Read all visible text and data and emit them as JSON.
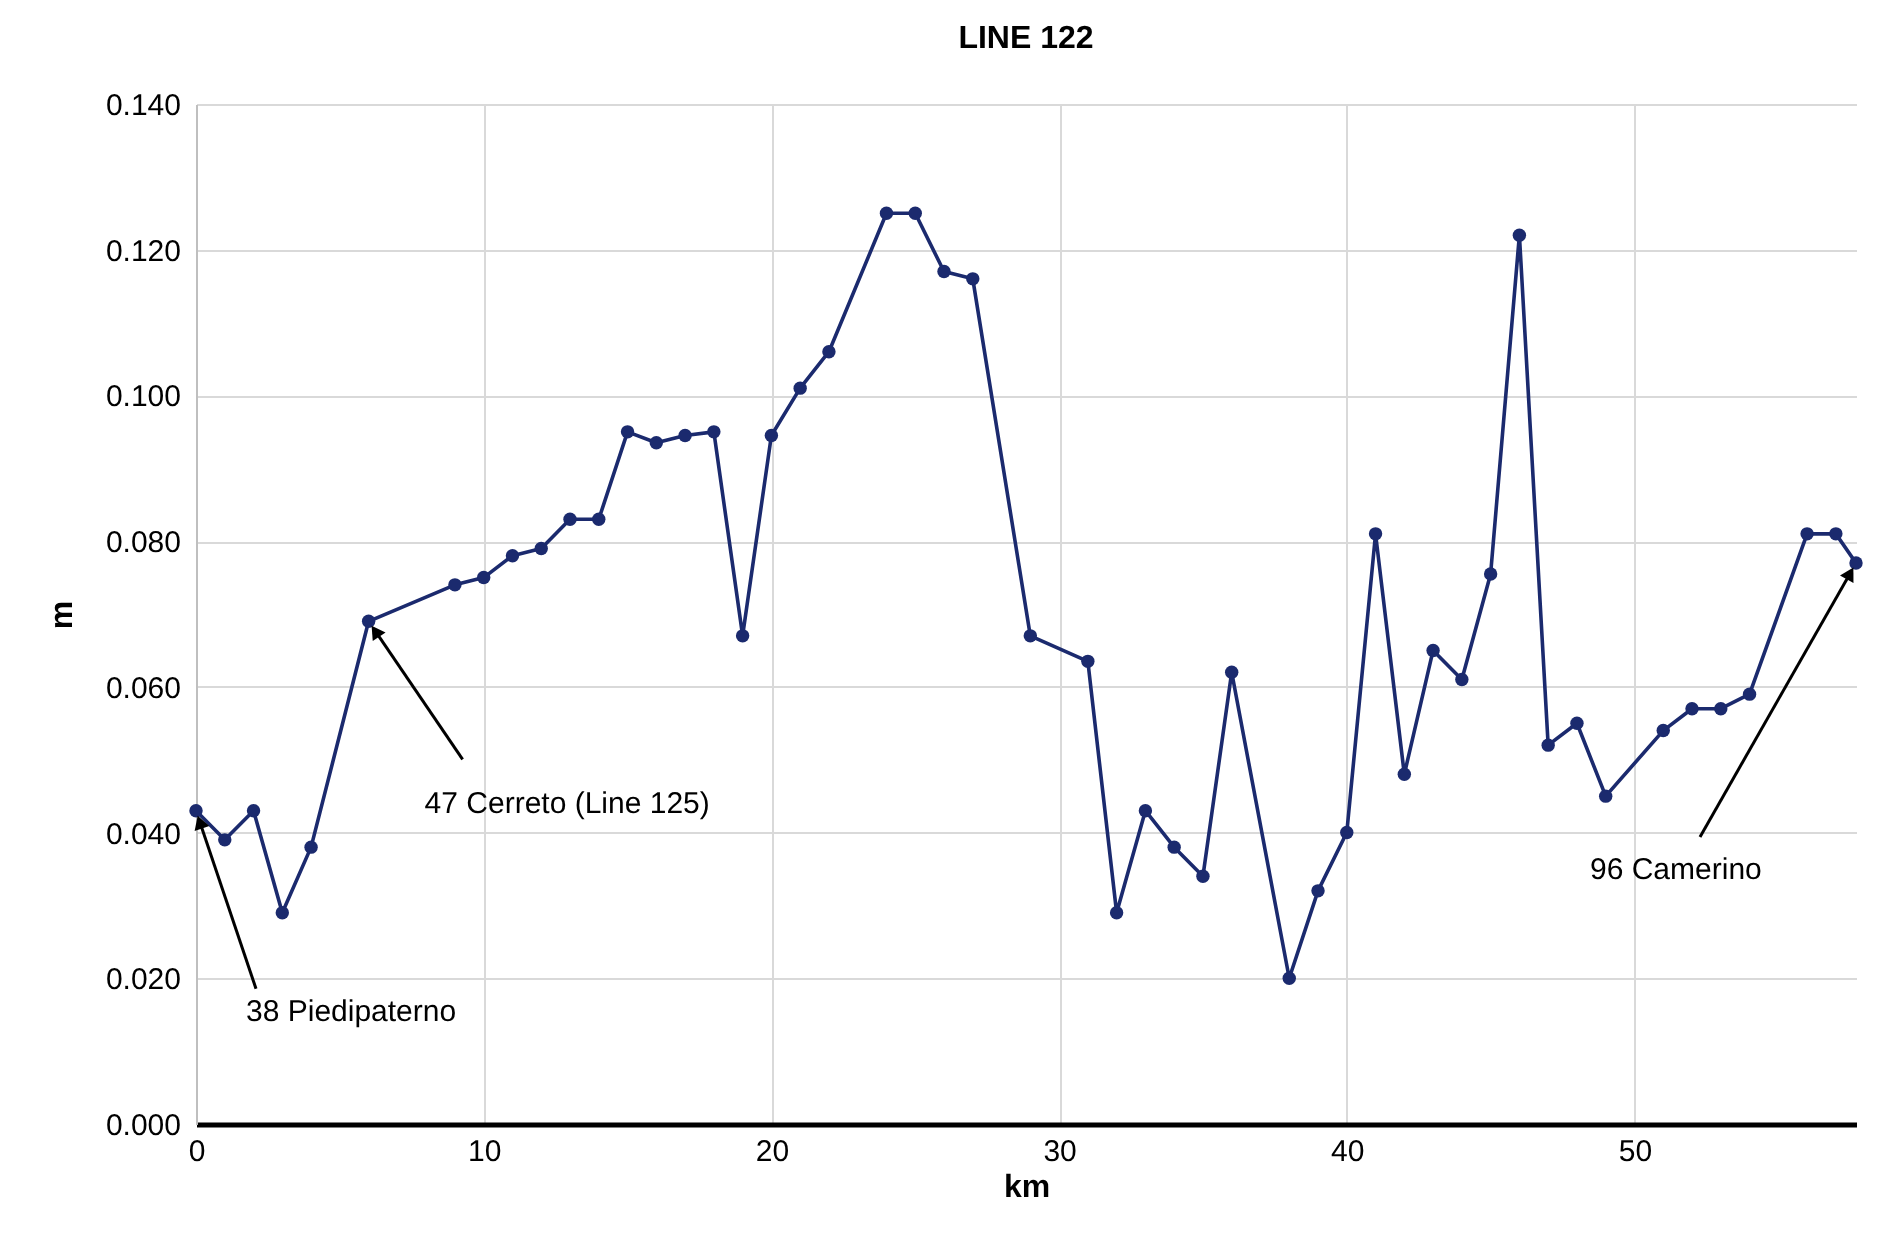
{
  "chart_data": {
    "type": "line",
    "title": "LINE 122",
    "xlabel": "km",
    "ylabel": "m",
    "x": [
      0,
      1,
      2,
      3,
      4,
      6,
      9,
      10,
      11,
      12,
      13,
      14,
      15,
      16,
      17,
      18,
      19,
      20,
      21,
      22,
      24,
      25,
      26,
      27,
      29,
      31,
      32,
      33,
      34,
      35,
      36,
      38,
      39,
      40,
      41,
      42,
      43,
      44,
      45,
      46,
      47,
      48,
      49,
      51,
      52,
      53,
      54,
      56,
      57,
      57.7
    ],
    "series": [
      {
        "color": "#1b2a6e",
        "values": [
          0.043,
          0.039,
          0.043,
          0.029,
          0.038,
          0.069,
          0.074,
          0.075,
          0.078,
          0.079,
          0.083,
          0.083,
          0.095,
          0.0935,
          0.0945,
          0.095,
          0.067,
          0.0945,
          0.101,
          0.106,
          0.125,
          0.125,
          0.117,
          0.116,
          0.067,
          0.0635,
          0.029,
          0.043,
          0.038,
          0.034,
          0.062,
          0.02,
          0.032,
          0.04,
          0.081,
          0.048,
          0.065,
          0.061,
          0.0755,
          0.122,
          0.052,
          0.055,
          0.045,
          0.054,
          0.057,
          0.057,
          0.059,
          0.081,
          0.081,
          0.077
        ]
      }
    ],
    "xlim": [
      0,
      57.7
    ],
    "xticks": [
      0,
      10,
      20,
      30,
      40,
      50
    ],
    "ylim": [
      0,
      0.14
    ],
    "yticks": [
      {
        "value": 0,
        "label": "0.000"
      },
      {
        "value": 0.02,
        "label": "0.020"
      },
      {
        "value": 0.04,
        "label": "0.040"
      },
      {
        "value": 0.06,
        "label": "0.060"
      },
      {
        "value": 0.08,
        "label": "0.080"
      },
      {
        "value": 0.1,
        "label": "0.100"
      },
      {
        "value": 0.12,
        "label": "0.120"
      },
      {
        "value": 0.14,
        "label": "0.140"
      }
    ],
    "annotations": [
      {
        "text": "38 Piedipaterno",
        "x": 0,
        "y": 0.043
      },
      {
        "text": "47 Cerreto (Line 125)",
        "x": 6,
        "y": 0.069
      },
      {
        "text": "96 Camerino",
        "x": 57.7,
        "y": 0.077
      }
    ],
    "grid": true,
    "marker": "circle",
    "line_style": "solid"
  }
}
